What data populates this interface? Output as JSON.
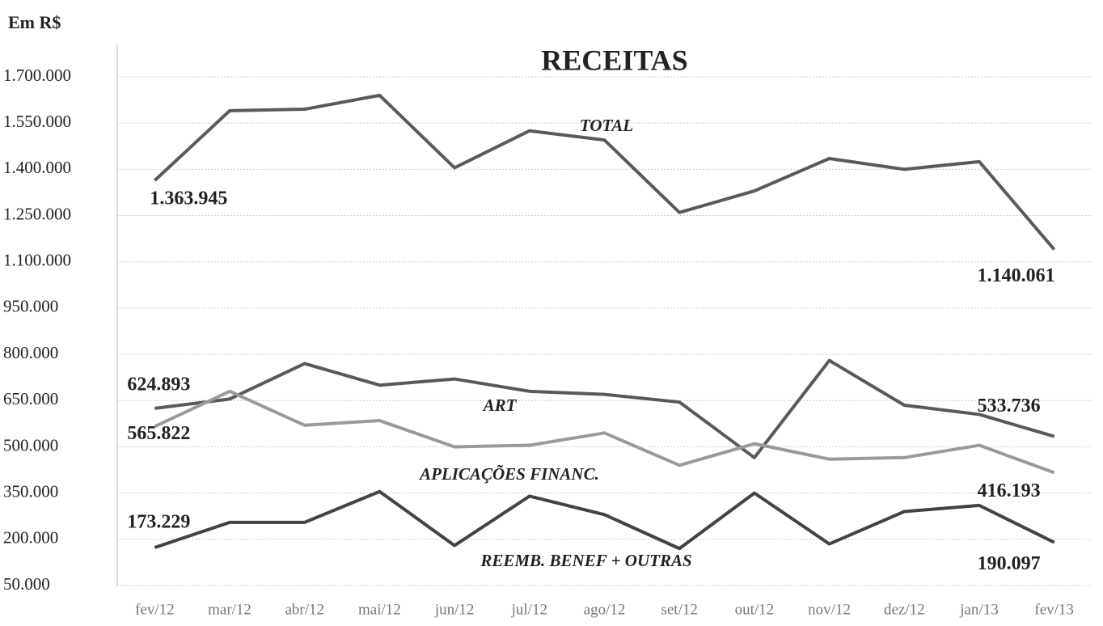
{
  "chart_data": {
    "type": "line",
    "title": "RECEITAS",
    "ylabel": "Em R$",
    "categories": [
      "fev/12",
      "mar/12",
      "abr/12",
      "mai/12",
      "jun/12",
      "jul/12",
      "ago/12",
      "set/12",
      "out/12",
      "nov/12",
      "dez/12",
      "jan/13",
      "fev/13"
    ],
    "ylim": [
      50000,
      1700000
    ],
    "yticks": [
      {
        "value": 50000,
        "label": "50.000"
      },
      {
        "value": 200000,
        "label": "200.000"
      },
      {
        "value": 350000,
        "label": "350.000"
      },
      {
        "value": 500000,
        "label": "500.000"
      },
      {
        "value": 650000,
        "label": "650.000"
      },
      {
        "value": 800000,
        "label": "800.000"
      },
      {
        "value": 950000,
        "label": "950.000"
      },
      {
        "value": 1100000,
        "label": "1.100.000"
      },
      {
        "value": 1250000,
        "label": "1.250.000"
      },
      {
        "value": 1400000,
        "label": "1.400.000"
      },
      {
        "value": 1550000,
        "label": "1.550.000"
      },
      {
        "value": 1700000,
        "label": "1.700.000"
      }
    ],
    "grid": true,
    "series": [
      {
        "name": "TOTAL",
        "color": "#5a5a5a",
        "values": [
          1363945,
          1590000,
          1595000,
          1640000,
          1405000,
          1525000,
          1495000,
          1260000,
          1330000,
          1435000,
          1400000,
          1425000,
          1140061
        ],
        "value_labels": [
          "1.363.945",
          null,
          null,
          null,
          null,
          null,
          null,
          null,
          null,
          null,
          null,
          null,
          "1.140.061"
        ]
      },
      {
        "name": "ART",
        "color": "#595959",
        "values": [
          624893,
          655000,
          770000,
          700000,
          720000,
          680000,
          670000,
          645000,
          465000,
          780000,
          635000,
          605000,
          533736
        ],
        "value_labels": [
          "624.893",
          null,
          null,
          null,
          null,
          null,
          null,
          null,
          null,
          null,
          null,
          null,
          "533.736"
        ]
      },
      {
        "name": "APLICAÇÕES FINANC.",
        "color": "#9a9a9a",
        "values": [
          565822,
          680000,
          570000,
          585000,
          500000,
          505000,
          545000,
          440000,
          510000,
          460000,
          465000,
          505000,
          416193
        ],
        "value_labels": [
          "565.822",
          null,
          null,
          null,
          null,
          null,
          null,
          null,
          null,
          null,
          null,
          null,
          "416.193"
        ]
      },
      {
        "name": "REEMB. BENEF + OUTRAS",
        "color": "#434343",
        "values": [
          173229,
          255000,
          255000,
          355000,
          180000,
          340000,
          280000,
          170000,
          350000,
          185000,
          290000,
          310000,
          190097
        ],
        "value_labels": [
          "173.229",
          null,
          null,
          null,
          null,
          null,
          null,
          null,
          null,
          null,
          null,
          null,
          "190.097"
        ]
      }
    ]
  }
}
